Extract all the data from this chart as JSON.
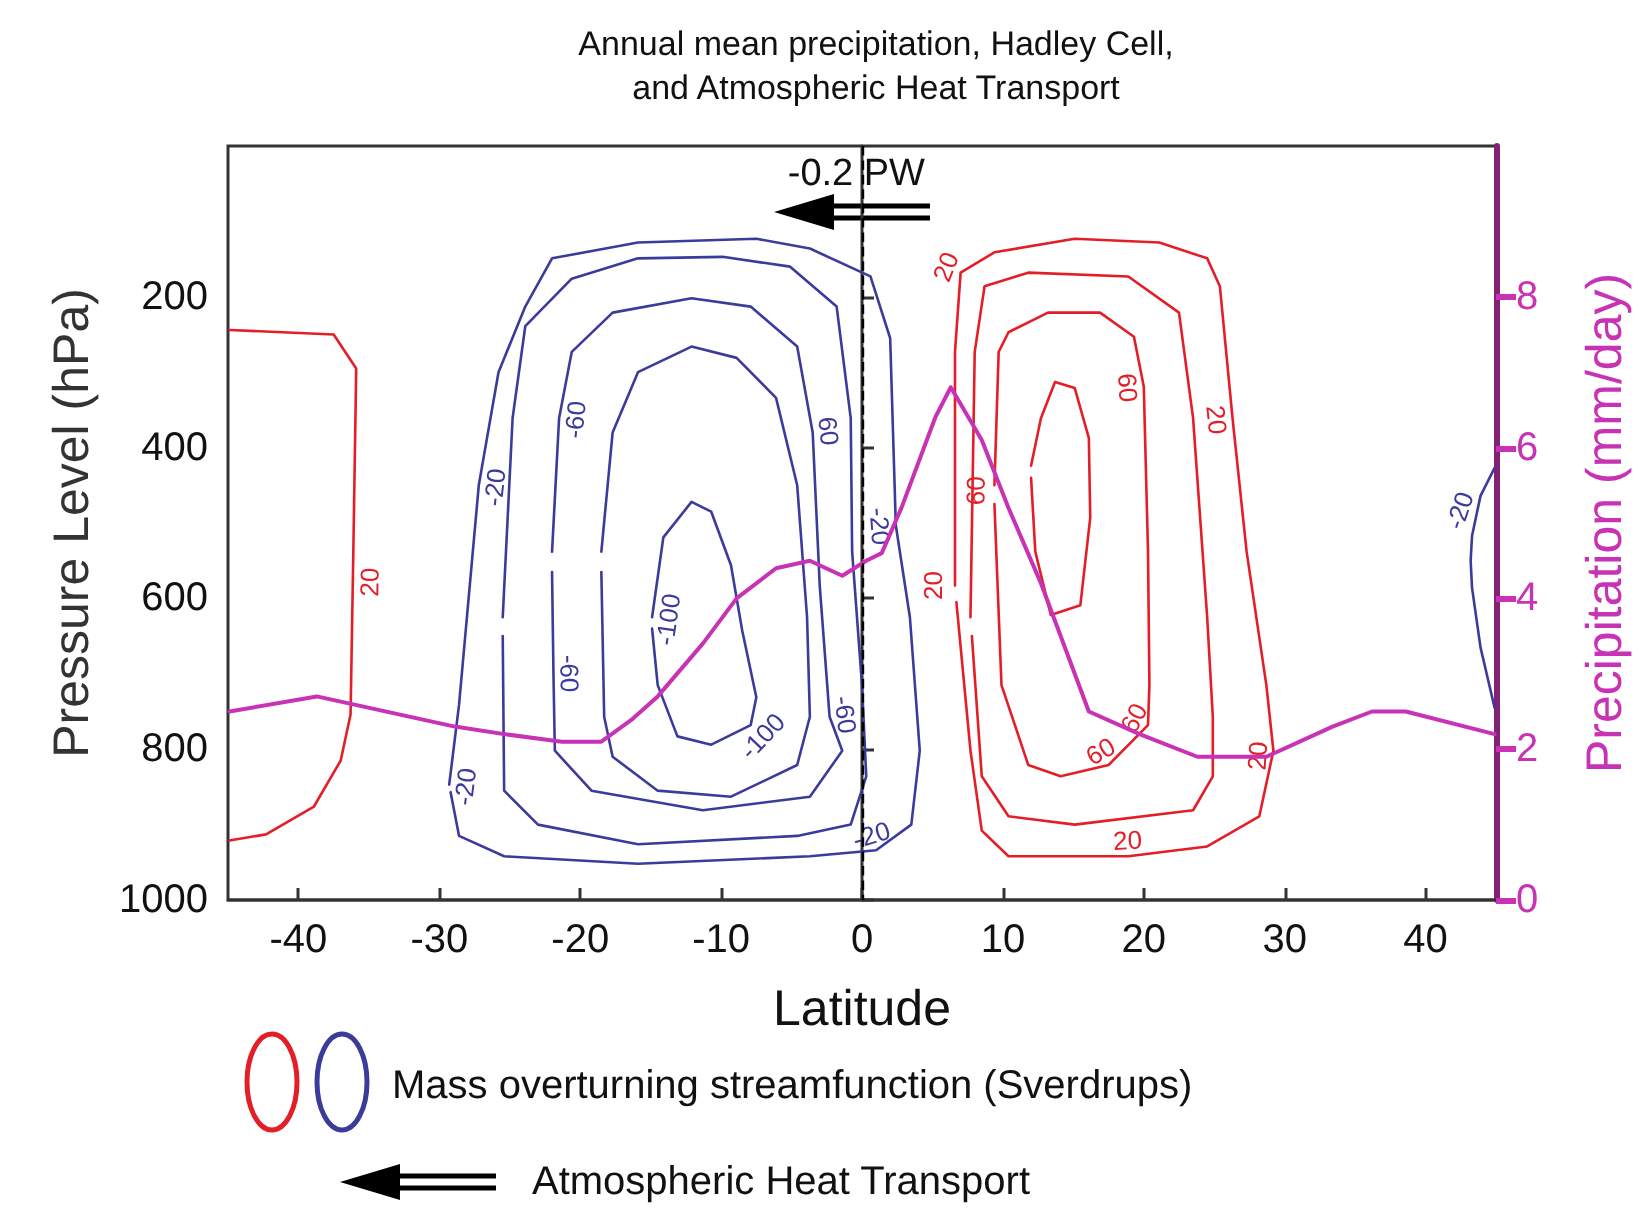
{
  "chart_data": {
    "type": "line",
    "title": "Annual mean precipitation, Hadley Cell,\nand Atmospheric Heat Transport",
    "xlabel": "Latitude",
    "ylabel": "Pressure Level (hPa)",
    "y2label": "Precipitation (mm/day)",
    "xlim": [
      -45,
      45
    ],
    "xticks": [
      -40,
      -30,
      -20,
      -10,
      0,
      10,
      20,
      30,
      40
    ],
    "ylim": [
      1000,
      0
    ],
    "yticks": [
      200,
      400,
      600,
      800,
      1000
    ],
    "y2lim": [
      0,
      10
    ],
    "y2ticks": [
      0,
      2,
      4,
      6,
      8
    ],
    "grid": false,
    "marker": "none",
    "line_style": "solid",
    "ref_lines": [
      {
        "axis": "x",
        "value": 0,
        "color": "#000000",
        "line_style": "dashed"
      }
    ],
    "series": [
      {
        "color": "#e41e26",
        "x": [
          -44.9,
          -37.5,
          -35.9,
          -36.1,
          -36.3,
          -37.0,
          -38.9,
          -42.3,
          -44.9
        ],
        "values": [
          244,
          250,
          295,
          533,
          754,
          815,
          876,
          913,
          921
        ]
      },
      {
        "color": "#e41e26",
        "x": [
          6.6,
          6.6,
          7.0,
          9.4,
          15.1,
          21.1,
          24.5,
          25.4,
          26.3,
          27.3,
          28.7,
          29.2,
          28.2,
          24.5,
          18.9,
          10.4,
          8.5,
          7.7,
          6.7
        ],
        "values": [
          583,
          273,
          168,
          141,
          123,
          128,
          149,
          186,
          361,
          538,
          715,
          802,
          889,
          929,
          942,
          942,
          908,
          802,
          605
        ]
      },
      {
        "color": "#e41e26",
        "x": [
          7.7,
          8.0,
          8.7,
          11.8,
          18.9,
          22.5,
          23.5,
          24.5,
          24.9,
          24.9,
          23.5,
          15.1,
          10.4,
          8.5,
          7.8
        ],
        "values": [
          625,
          273,
          186,
          168,
          173,
          221,
          361,
          625,
          757,
          836,
          881,
          900,
          889,
          836,
          650
        ]
      },
      {
        "color": "#e41e26",
        "x": [
          9.4,
          9.7,
          10.4,
          13.2,
          16.9,
          19.3,
          20.0,
          20.3,
          20.4,
          20.3,
          17.5,
          14.1,
          11.8,
          9.9,
          9.4
        ],
        "values": [
          450,
          273,
          247,
          221,
          221,
          253,
          319,
          538,
          715,
          768,
          821,
          836,
          821,
          715,
          475
        ]
      },
      {
        "color": "#e41e26",
        "x": [
          12.0,
          12.7,
          13.7,
          15.1,
          16.1,
          16.2,
          15.5,
          13.4,
          12.3,
          12.0
        ],
        "values": [
          424,
          361,
          313,
          321,
          387,
          493,
          609,
          622,
          538,
          440
        ]
      },
      {
        "color": "#3b3b9b",
        "x": [
          -29.3,
          -28.6,
          -27.2,
          -25.8,
          -23.9,
          -22.0,
          -15.9,
          -7.5,
          -3.7,
          0.6,
          2.0,
          2.4,
          3.4,
          4.1,
          3.5,
          1.0,
          -3.7,
          -15.9,
          -25.4,
          -28.6,
          -29.2
        ],
        "values": [
          847,
          741,
          450,
          300,
          213,
          149,
          128,
          123,
          136,
          173,
          255,
          503,
          625,
          802,
          900,
          934,
          942,
          952,
          942,
          915,
          857
        ]
      },
      {
        "color": "#3b3b9b",
        "x": [
          -25.5,
          -24.8,
          -23.9,
          -20.6,
          -15.9,
          -9.9,
          -5.1,
          -1.8,
          -0.8,
          -0.7,
          0.0,
          0.3,
          -0.8,
          -4.6,
          -15.9,
          -23.0,
          -25.4,
          -25.5
        ],
        "values": [
          625,
          361,
          239,
          176,
          149,
          147,
          160,
          213,
          361,
          538,
          715,
          836,
          900,
          915,
          926,
          900,
          855,
          650
        ]
      },
      {
        "color": "#3b3b9b",
        "x": [
          -22.0,
          -21.5,
          -20.6,
          -17.7,
          -12.1,
          -7.9,
          -4.6,
          -3.5,
          -3.0,
          -2.3,
          -1.4,
          -3.7,
          -11.3,
          -19.2,
          -21.8,
          -21.9,
          -22.0
        ],
        "values": [
          538,
          361,
          273,
          221,
          202,
          213,
          266,
          380,
          583,
          757,
          802,
          863,
          881,
          855,
          802,
          700,
          565
        ]
      },
      {
        "color": "#3b3b9b",
        "x": [
          -18.5,
          -17.7,
          -15.9,
          -12.1,
          -8.9,
          -6.1,
          -4.6,
          -3.9,
          -3.7,
          -4.6,
          -9.3,
          -14.5,
          -17.7,
          -18.3,
          -18.5
        ],
        "values": [
          538,
          380,
          300,
          266,
          281,
          334,
          450,
          625,
          757,
          821,
          863,
          855,
          810,
          757,
          565
        ]
      },
      {
        "color": "#3b3b9b",
        "x": [
          -14.9,
          -14.1,
          -12.1,
          -10.7,
          -9.3,
          -8.5,
          -7.5,
          -7.9,
          -10.7,
          -13.1,
          -14.5,
          -14.9
        ],
        "values": [
          625,
          519,
          472,
          485,
          556,
          643,
          731,
          768,
          794,
          783,
          715,
          640
        ]
      },
      {
        "color": "#3b3b9b",
        "x": [
          44.9,
          43.9,
          43.3,
          43.2,
          43.3,
          43.9,
          44.9
        ],
        "values": [
          427,
          464,
          517,
          550,
          586,
          665,
          745
        ]
      },
      {
        "color": "#c832b4",
        "axis": "y2",
        "x": [
          -44.9,
          -38.7,
          -28.9,
          -25.4,
          -21.3,
          -18.5,
          -16.3,
          -14.5,
          -11.3,
          -8.9,
          -6.1,
          -3.7,
          -1.4,
          0.3,
          1.4,
          2.8,
          5.2,
          6.3,
          8.5,
          10.4,
          12.7,
          16.1,
          19.7,
          23.8,
          28.7,
          33.4,
          36.2,
          38.6,
          44.9
        ],
        "values": [
          2.5,
          2.7,
          2.3,
          2.2,
          2.1,
          2.1,
          2.4,
          2.7,
          3.4,
          4.0,
          4.4,
          4.5,
          4.3,
          4.5,
          4.6,
          5.2,
          6.4,
          6.8,
          6.1,
          5.2,
          4.2,
          2.5,
          2.2,
          1.9,
          1.9,
          2.3,
          2.5,
          2.5,
          2.2
        ]
      }
    ],
    "annotations": [
      "Mass overturning streamfunction (Sverdrups)",
      "Atmospheric Heat Transport",
      {
        "text": "-0.2 PW",
        "x": -0.4,
        "y": 70
      },
      {
        "text": "20",
        "x": -36.1,
        "y": 578
      },
      {
        "text": "-20",
        "x": 43.5,
        "y": 490
      },
      {
        "text": "-20",
        "x": -27.2,
        "y": 450
      },
      {
        "text": "-60",
        "x": -21.5,
        "y": 361
      },
      {
        "text": "60",
        "x": -3.5,
        "y": 380
      },
      {
        "text": "-100",
        "x": -14.9,
        "y": 625
      },
      {
        "text": "-100",
        "x": -7.9,
        "y": 768
      },
      {
        "text": "-20",
        "x": 2.4,
        "y": 503
      },
      {
        "text": "-60",
        "x": -21.9,
        "y": 700
      },
      {
        "text": "-60",
        "x": -2.3,
        "y": 757
      },
      {
        "text": "-20",
        "x": -29.3,
        "y": 847
      },
      {
        "text": "-20",
        "x": 1.0,
        "y": 934
      },
      {
        "text": "20",
        "x": 7.0,
        "y": 168
      },
      {
        "text": "20",
        "x": 6.2,
        "y": 583
      },
      {
        "text": "20",
        "x": 26.3,
        "y": 361
      },
      {
        "text": "20",
        "x": 18.9,
        "y": 942
      },
      {
        "text": "20",
        "x": 29.2,
        "y": 810
      },
      {
        "text": "60",
        "x": 9.2,
        "y": 458
      },
      {
        "text": "60",
        "x": 20.0,
        "y": 319
      },
      {
        "text": "60",
        "x": 20.3,
        "y": 768
      },
      {
        "text": "60",
        "x": 17.5,
        "y": 821
      }
    ]
  }
}
